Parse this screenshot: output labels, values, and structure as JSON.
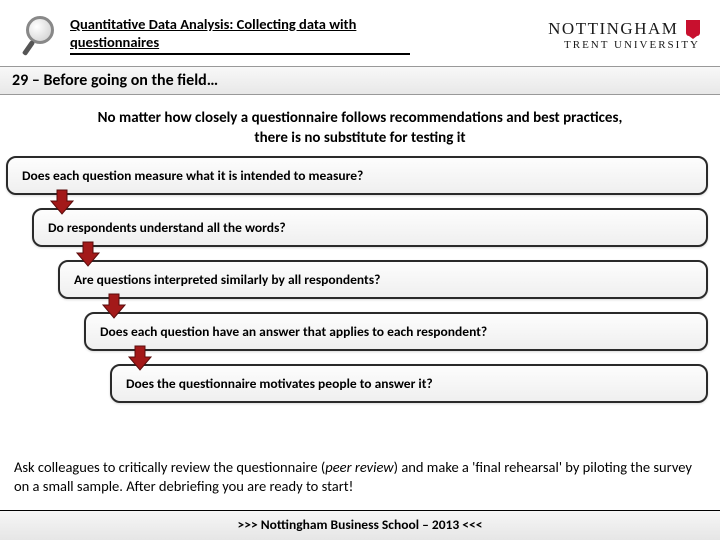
{
  "header": {
    "title": "Quantitative Data Analysis: Collecting data with questionnaires",
    "university_top": "NOTTINGHAM",
    "university_bottom": "TRENT UNIVERSITY"
  },
  "slide_number": "29",
  "slide_title": "Before going on the field…",
  "intro_text": "No matter how closely a questionnaire follows recommendations and best practices, there is no substitute for testing it",
  "questions": [
    "Does each question measure what it is intended to measure?",
    "Do respondents understand all the words?",
    "Are questions interpreted similarly by all respondents?",
    "Does each question have an answer that applies to each respondent?",
    "Does the questionnaire motivates people to answer it?"
  ],
  "layout": {
    "box_tops": [
      0,
      52,
      104,
      156,
      208
    ],
    "box_lefts": [
      0,
      26,
      52,
      78,
      104
    ],
    "arrow_tops": [
      32,
      84,
      136,
      188
    ],
    "arrow_lefts": [
      42,
      68,
      94,
      120
    ]
  },
  "colors": {
    "arrow_fill": "#a31919",
    "arrow_stroke": "#5a0c0c",
    "badge": "#c8102e"
  },
  "closing_pre": "Ask colleagues to critically review the questionnaire (",
  "closing_italic": "peer review",
  "closing_post": ") and make a 'final rehearsal' by piloting the survey on a small sample. After debriefing you are ready to start!",
  "footer": ">>> Nottingham Business School – 2013 <<<"
}
